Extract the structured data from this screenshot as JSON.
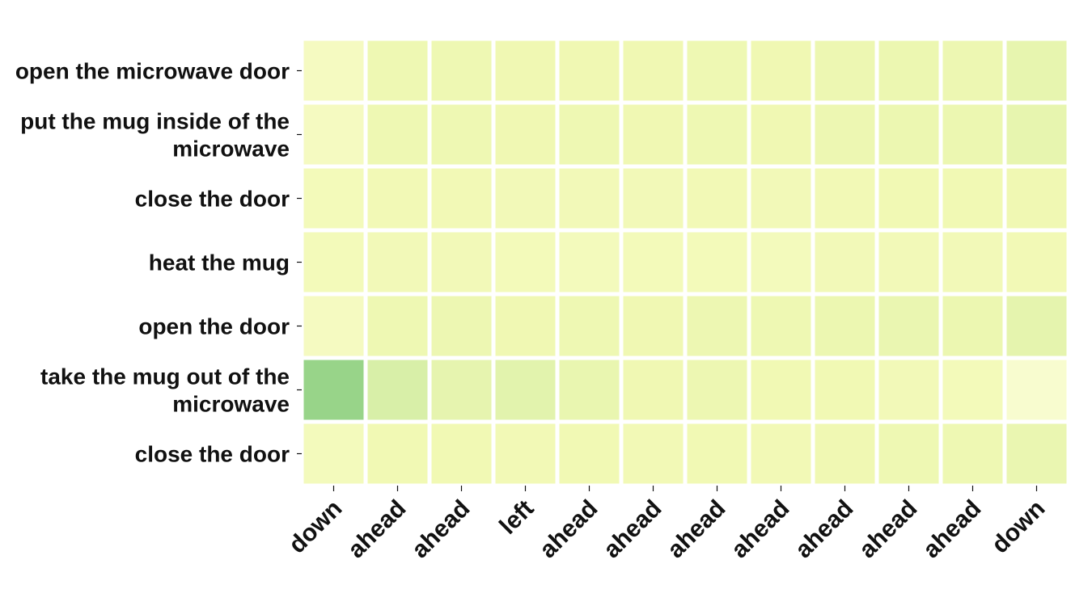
{
  "chart_data": {
    "type": "heatmap",
    "title": "",
    "xlabel": "",
    "ylabel": "",
    "grid": false,
    "legend": "none",
    "x_categories": [
      "down",
      "ahead",
      "ahead",
      "left",
      "ahead",
      "ahead",
      "ahead",
      "ahead",
      "ahead",
      "ahead",
      "ahead",
      "down"
    ],
    "y_categories": [
      [
        "open the microwave door"
      ],
      [
        "put the mug inside of the",
        "microwave"
      ],
      [
        "close the door"
      ],
      [
        "heat the mug"
      ],
      [
        "open the door"
      ],
      [
        "take the mug out of the",
        "microwave"
      ],
      [
        "close the door"
      ]
    ],
    "values": [
      [
        0.13,
        0.22,
        0.22,
        0.21,
        0.21,
        0.21,
        0.22,
        0.21,
        0.23,
        0.24,
        0.23,
        0.27
      ],
      [
        0.13,
        0.22,
        0.22,
        0.21,
        0.22,
        0.21,
        0.22,
        0.21,
        0.23,
        0.24,
        0.24,
        0.27
      ],
      [
        0.17,
        0.19,
        0.19,
        0.18,
        0.18,
        0.18,
        0.19,
        0.18,
        0.19,
        0.2,
        0.2,
        0.21
      ],
      [
        0.17,
        0.18,
        0.18,
        0.17,
        0.16,
        0.17,
        0.17,
        0.16,
        0.18,
        0.18,
        0.18,
        0.19
      ],
      [
        0.13,
        0.22,
        0.23,
        0.21,
        0.22,
        0.21,
        0.23,
        0.22,
        0.24,
        0.25,
        0.24,
        0.29
      ],
      [
        0.85,
        0.38,
        0.28,
        0.31,
        0.26,
        0.21,
        0.23,
        0.2,
        0.2,
        0.18,
        0.17,
        0.06
      ],
      [
        0.16,
        0.2,
        0.2,
        0.19,
        0.2,
        0.19,
        0.2,
        0.19,
        0.21,
        0.22,
        0.22,
        0.25
      ]
    ],
    "colors": {
      "low": "#fbfdda",
      "mid": "#f1f9b4",
      "high": "#98d489",
      "gap": "#ffffff",
      "text": "#111111"
    }
  }
}
